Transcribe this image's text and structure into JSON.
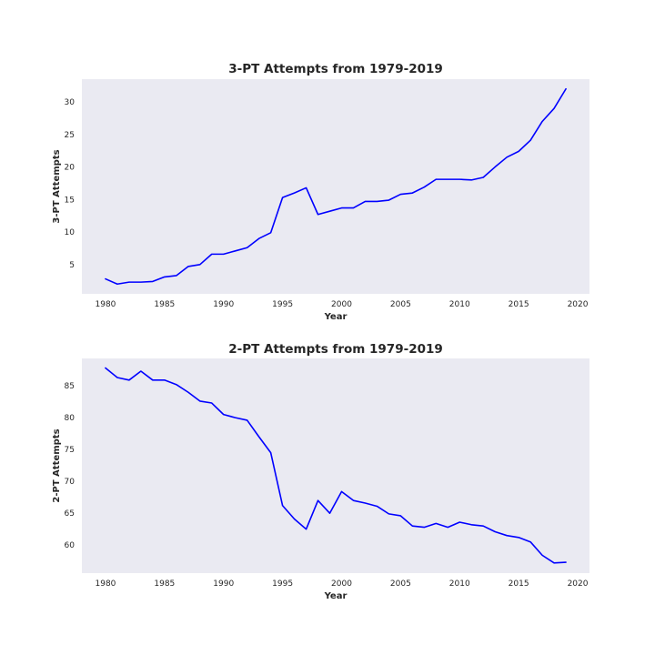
{
  "colors": {
    "background": "#eaeaf2",
    "line": "#0000ff",
    "text": "#262626"
  },
  "chart_data": [
    {
      "type": "line",
      "title": "3-PT Attempts from 1979-2019",
      "xlabel": "Year",
      "ylabel": "3-PT Attempts",
      "xlim": [
        1978,
        2021
      ],
      "ylim": [
        0.5,
        33.5
      ],
      "xticks": [
        1980,
        1985,
        1990,
        1995,
        2000,
        2005,
        2010,
        2015,
        2020
      ],
      "yticks": [
        5,
        10,
        15,
        20,
        25,
        30
      ],
      "grid": false,
      "x": [
        1980,
        1981,
        1982,
        1983,
        1984,
        1985,
        1986,
        1987,
        1988,
        1989,
        1990,
        1991,
        1992,
        1993,
        1994,
        1995,
        1996,
        1997,
        1998,
        1999,
        2000,
        2001,
        2002,
        2003,
        2004,
        2005,
        2006,
        2007,
        2008,
        2009,
        2010,
        2011,
        2012,
        2013,
        2014,
        2015,
        2016,
        2017,
        2018,
        2019
      ],
      "series": [
        {
          "values": [
            2.8,
            2.0,
            2.3,
            2.3,
            2.4,
            3.1,
            3.3,
            4.7,
            5.0,
            6.6,
            6.6,
            7.1,
            7.6,
            9.0,
            9.9,
            15.3,
            16.0,
            16.8,
            12.7,
            13.2,
            13.7,
            13.7,
            14.7,
            14.7,
            14.9,
            15.8,
            16.0,
            16.9,
            18.1,
            18.1,
            18.1,
            18.0,
            18.4,
            20.0,
            21.5,
            22.4,
            24.1,
            27.0,
            29.0,
            32.0
          ]
        }
      ]
    },
    {
      "type": "line",
      "title": "2-PT Attempts from 1979-2019",
      "xlabel": "Year",
      "ylabel": "2-PT Attempts",
      "xlim": [
        1978,
        2021
      ],
      "ylim": [
        55.6,
        89.3
      ],
      "xticks": [
        1980,
        1985,
        1990,
        1995,
        2000,
        2005,
        2010,
        2015,
        2020
      ],
      "yticks": [
        60,
        65,
        70,
        75,
        80,
        85
      ],
      "grid": false,
      "x": [
        1980,
        1981,
        1982,
        1983,
        1984,
        1985,
        1986,
        1987,
        1988,
        1989,
        1990,
        1991,
        1992,
        1993,
        1994,
        1995,
        1996,
        1997,
        1998,
        1999,
        2000,
        2001,
        2002,
        2003,
        2004,
        2005,
        2006,
        2007,
        2008,
        2009,
        2010,
        2011,
        2012,
        2013,
        2014,
        2015,
        2016,
        2017,
        2018,
        2019
      ],
      "series": [
        {
          "values": [
            87.8,
            86.3,
            85.9,
            87.3,
            85.9,
            85.9,
            85.2,
            84.0,
            82.6,
            82.3,
            80.5,
            80.0,
            79.6,
            77.0,
            74.5,
            66.2,
            64.1,
            62.5,
            67.0,
            65.0,
            68.4,
            67.0,
            66.6,
            66.1,
            64.9,
            64.6,
            63.0,
            62.8,
            63.4,
            62.8,
            63.6,
            63.2,
            63.0,
            62.1,
            61.5,
            61.2,
            60.5,
            58.4,
            57.2,
            57.3
          ]
        }
      ]
    }
  ]
}
